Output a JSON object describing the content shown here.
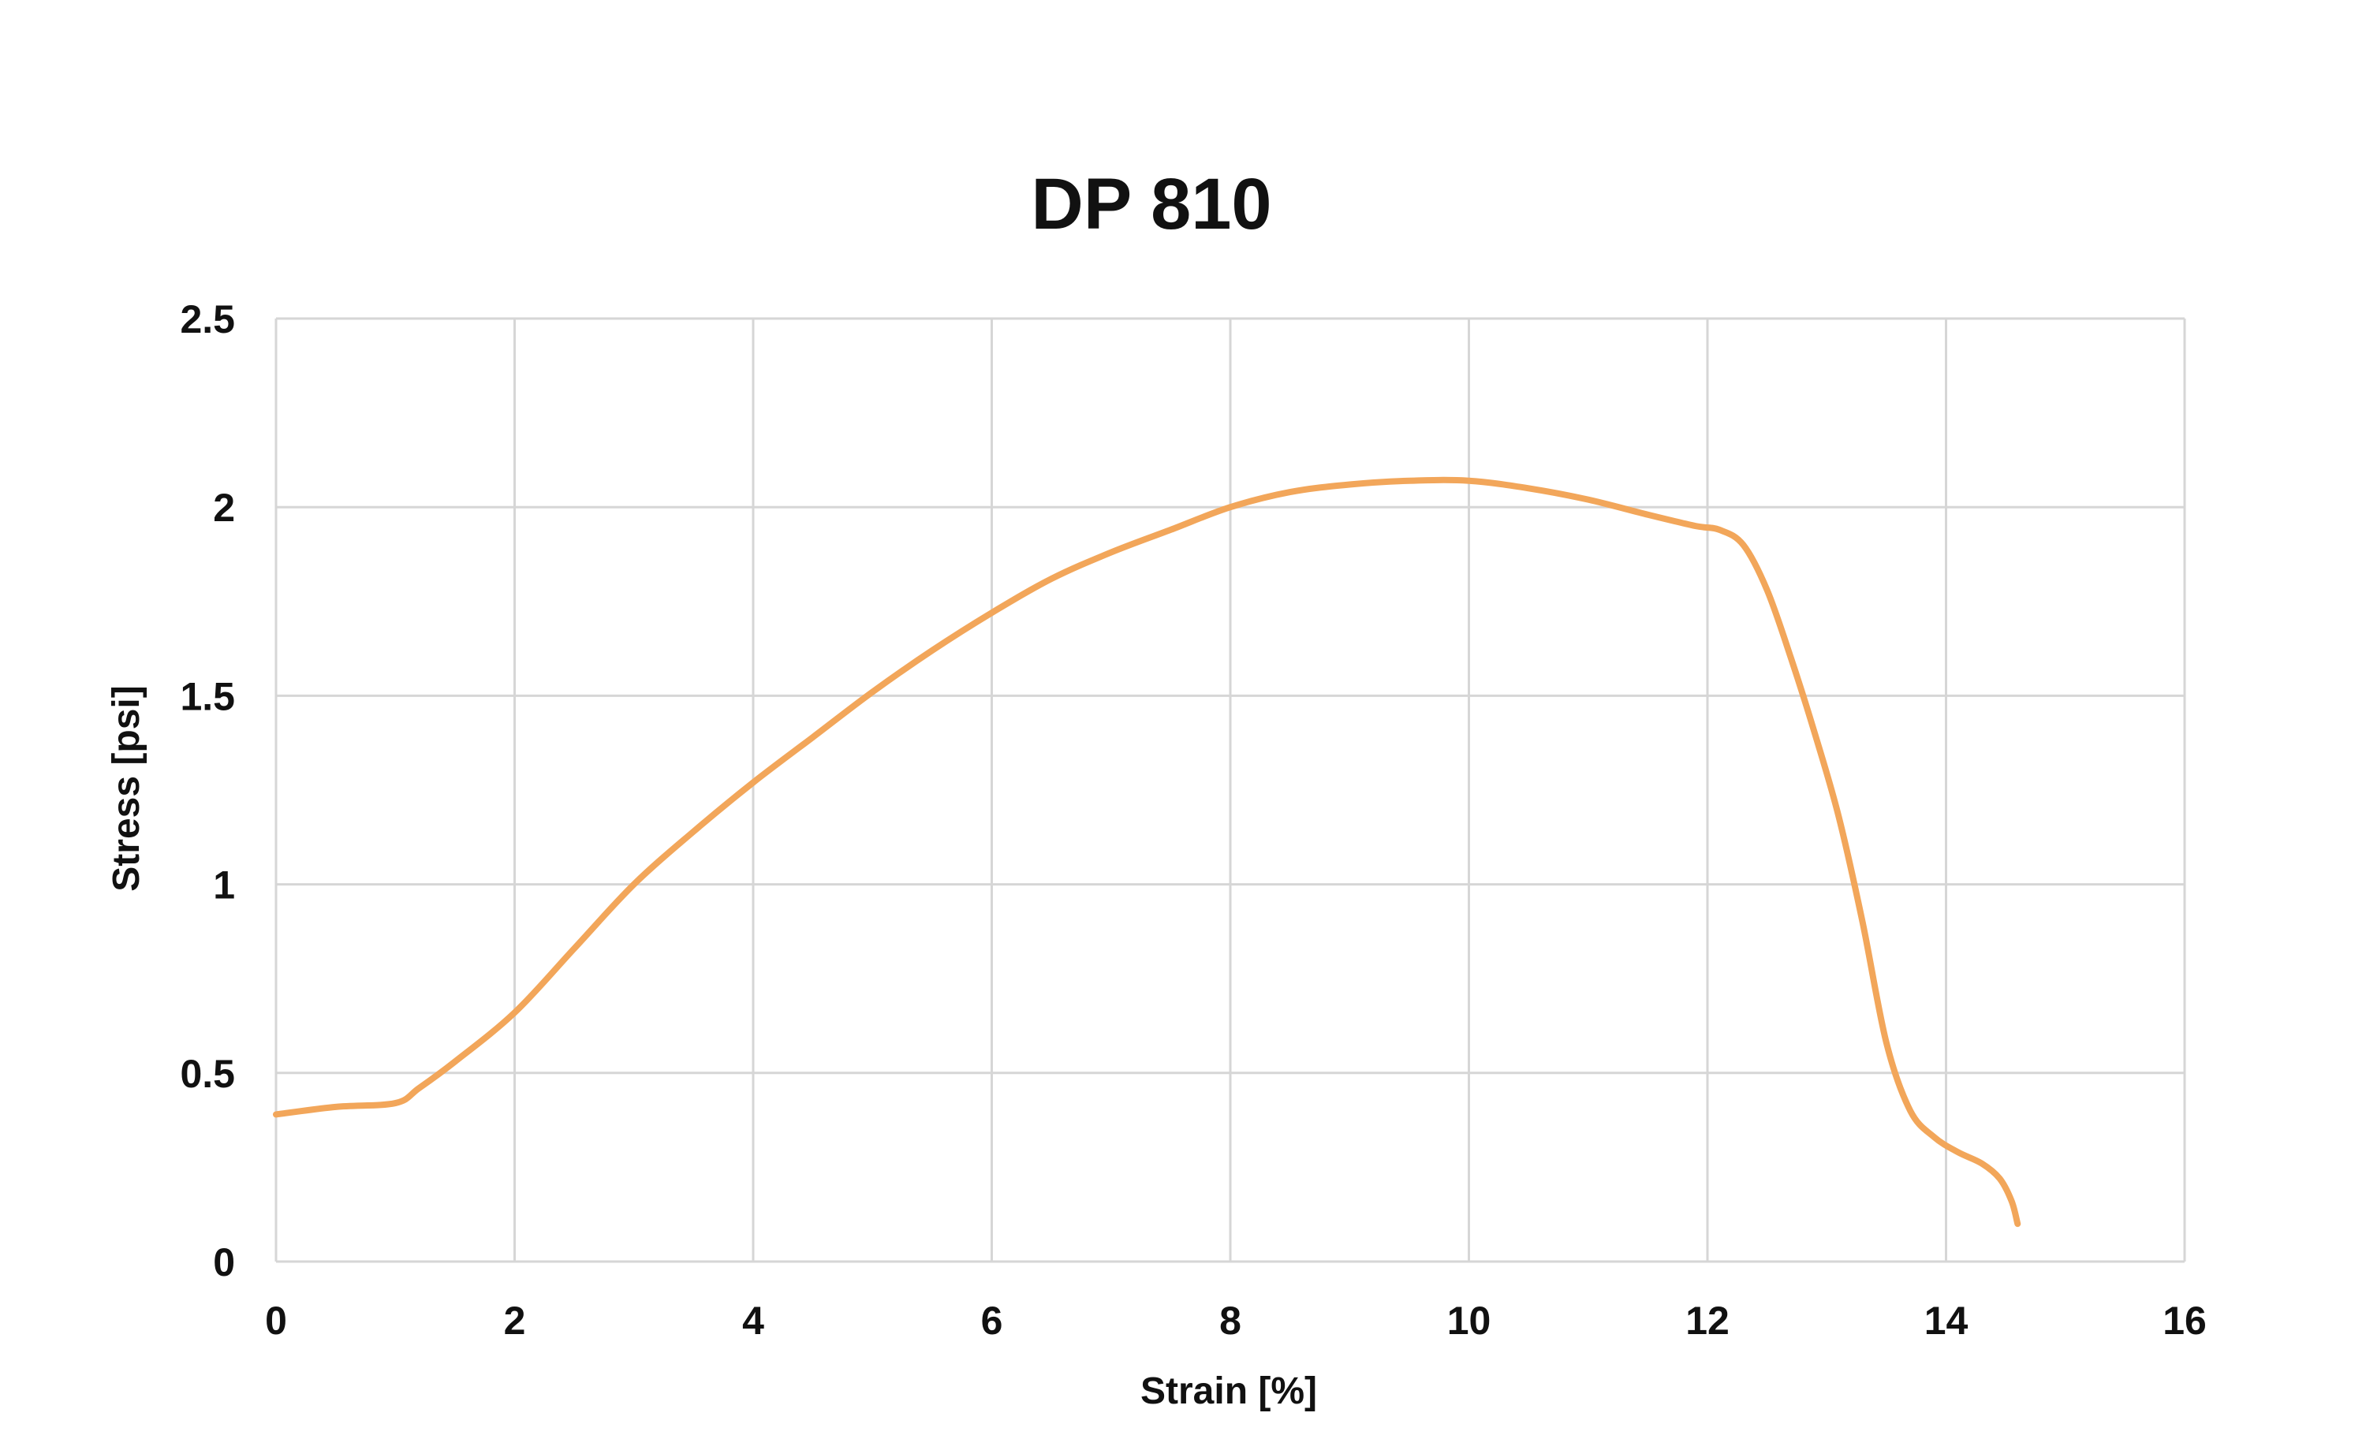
{
  "chart_data": {
    "type": "line",
    "title": "DP 810",
    "xlabel": "Strain [%]",
    "ylabel": "Stress [psi]",
    "xlim": [
      0,
      16
    ],
    "ylim": [
      0,
      2.5
    ],
    "x_ticks": [
      "0",
      "2",
      "4",
      "6",
      "8",
      "10",
      "12",
      "14",
      "16"
    ],
    "y_ticks": [
      "0",
      "0.5",
      "1",
      "1.5",
      "2",
      "2.5"
    ],
    "grid": true,
    "legend": "none",
    "series": [
      {
        "color": "#f2a65a",
        "x": [
          0,
          0.5,
          1.0,
          1.2,
          1.5,
          2.0,
          2.5,
          3.0,
          3.5,
          4.0,
          4.5,
          5.0,
          5.5,
          6.0,
          6.5,
          7.0,
          7.5,
          8.0,
          8.5,
          9.0,
          9.5,
          10.0,
          10.5,
          11.0,
          11.5,
          11.9,
          12.1,
          12.3,
          12.5,
          12.7,
          12.9,
          13.1,
          13.3,
          13.5,
          13.7,
          13.9,
          14.1,
          14.3,
          14.45,
          14.55,
          14.6
        ],
        "y": [
          0.39,
          0.41,
          0.42,
          0.46,
          0.53,
          0.66,
          0.83,
          1.0,
          1.14,
          1.27,
          1.39,
          1.51,
          1.62,
          1.72,
          1.81,
          1.88,
          1.94,
          2.0,
          2.04,
          2.06,
          2.07,
          2.07,
          2.05,
          2.02,
          1.98,
          1.95,
          1.94,
          1.9,
          1.78,
          1.6,
          1.4,
          1.18,
          0.9,
          0.58,
          0.4,
          0.33,
          0.29,
          0.26,
          0.22,
          0.16,
          0.1
        ]
      }
    ]
  }
}
